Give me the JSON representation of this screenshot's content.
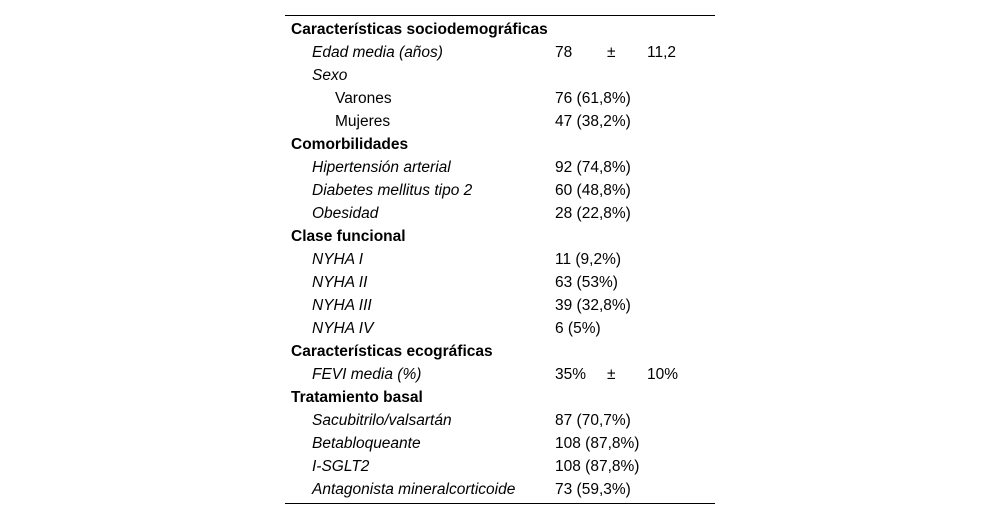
{
  "colors": {
    "background": "#ffffff",
    "text": "#000000",
    "rule": "#000000"
  },
  "table": {
    "rows": [
      {
        "label": "Características sociodemográficas",
        "style": "section",
        "value": ""
      },
      {
        "label": "Edad media (años)",
        "style": "item",
        "value_parts": [
          "78",
          "±",
          "11,2"
        ]
      },
      {
        "label": "Sexo",
        "style": "item",
        "value": ""
      },
      {
        "label": "Varones",
        "style": "subitem",
        "value": "76 (61,8%)"
      },
      {
        "label": "Mujeres",
        "style": "subitem",
        "value": "47 (38,2%)"
      },
      {
        "label": "Comorbilidades",
        "style": "section",
        "value": ""
      },
      {
        "label": "Hipertensión arterial",
        "style": "item",
        "value": "92 (74,8%)"
      },
      {
        "label": "Diabetes mellitus tipo 2",
        "style": "item",
        "value": "60 (48,8%)"
      },
      {
        "label": "Obesidad",
        "style": "item",
        "value": "28 (22,8%)"
      },
      {
        "label": "Clase funcional",
        "style": "section",
        "value": ""
      },
      {
        "label": "NYHA I",
        "style": "item",
        "value": "11 (9,2%)"
      },
      {
        "label": "NYHA II",
        "style": "item",
        "value": "63 (53%)"
      },
      {
        "label": "NYHA III",
        "style": "item",
        "value": "39 (32,8%)"
      },
      {
        "label": "NYHA IV",
        "style": "item",
        "value": "6 (5%)"
      },
      {
        "label": "Características ecográficas",
        "style": "section",
        "value": ""
      },
      {
        "label": "FEVI media (%)",
        "style": "item",
        "value_parts": [
          "35%",
          "±",
          "10%"
        ]
      },
      {
        "label": "Tratamiento basal",
        "style": "section",
        "value": ""
      },
      {
        "label": "Sacubitrilo/valsartán",
        "style": "item",
        "value": "87 (70,7%)"
      },
      {
        "label": "Betabloqueante",
        "style": "item",
        "value": "108 (87,8%)"
      },
      {
        "label": "I-SGLT2",
        "style": "item",
        "value": "108 (87,8%)"
      },
      {
        "label": "Antagonista mineralcorticoide",
        "style": "item",
        "value": "73 (59,3%)"
      }
    ]
  }
}
